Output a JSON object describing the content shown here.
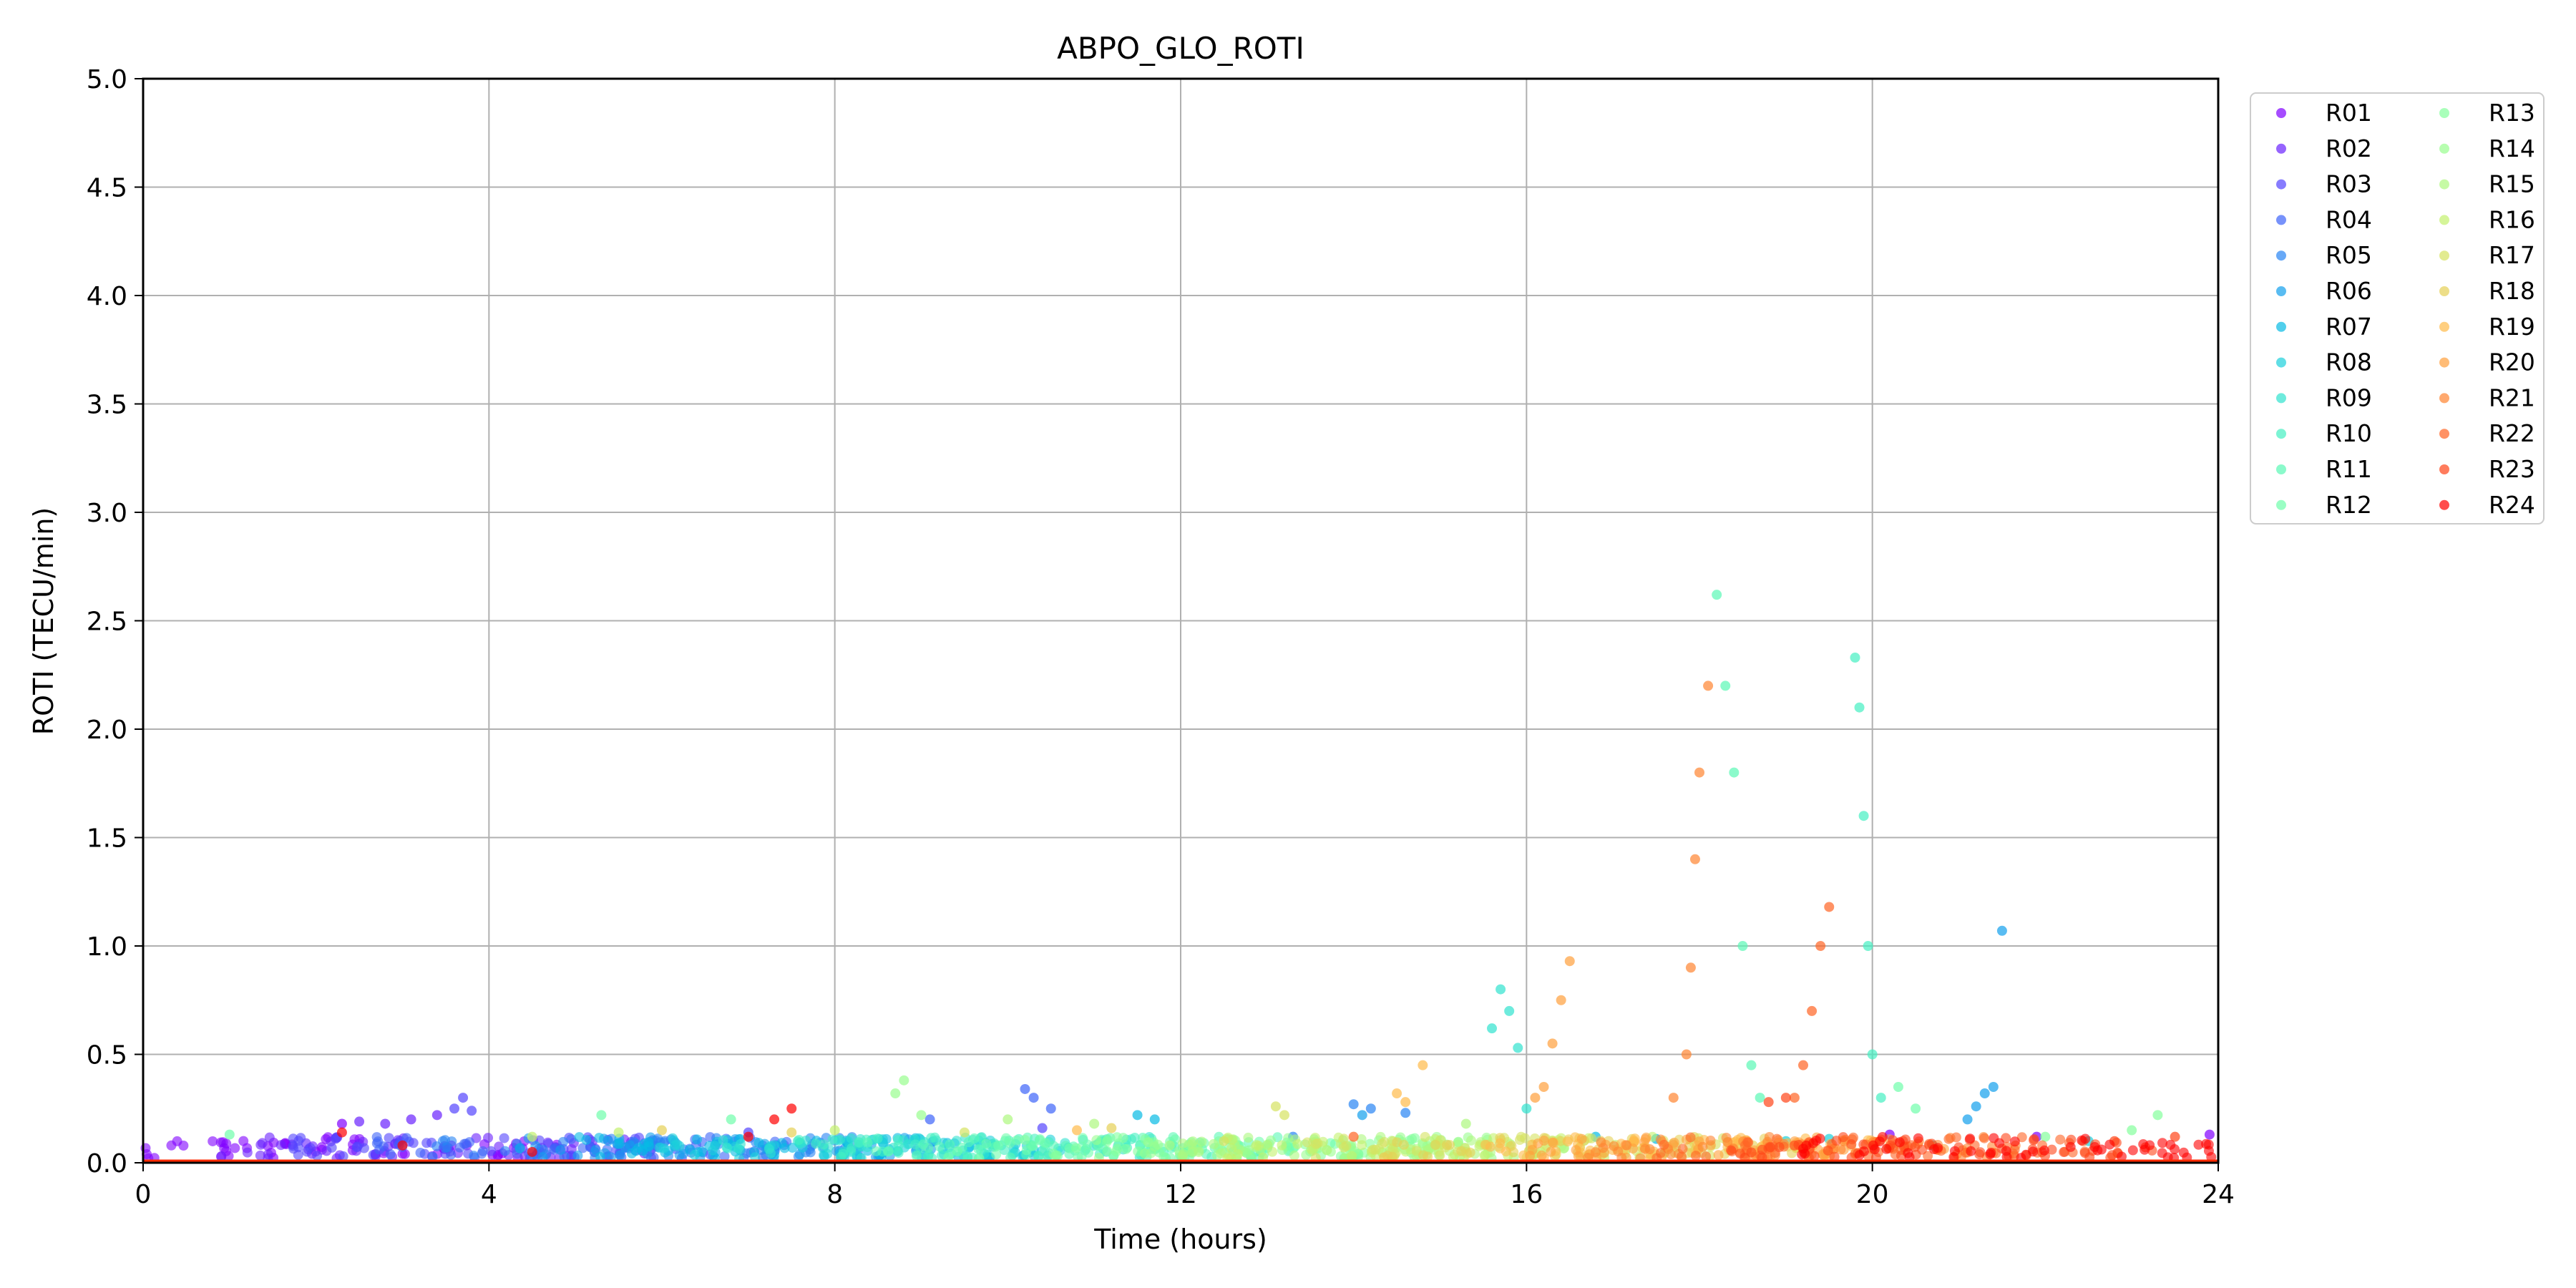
{
  "chart_data": {
    "type": "scatter",
    "title": "ABPO_GLO_ROTI",
    "xlabel": "Time (hours)",
    "ylabel": "ROTI (TECU/min)",
    "xlim": [
      0,
      24
    ],
    "ylim": [
      0,
      5
    ],
    "xticks": [
      "0",
      "4",
      "8",
      "12",
      "16",
      "20",
      "24"
    ],
    "yticks": [
      "0.0",
      "0.5",
      "1.0",
      "1.5",
      "2.0",
      "2.5",
      "3.0",
      "3.5",
      "4.0",
      "4.5",
      "5.0"
    ],
    "grid": true,
    "legend": {
      "placement": "outside right",
      "columns": 2
    },
    "series": [
      {
        "name": "R01",
        "color": "#8000ff",
        "points": [
          [
            20.2,
            0.13
          ],
          [
            21.9,
            0.12
          ],
          [
            23.9,
            0.13
          ],
          [
            2.3,
            0.18
          ]
        ]
      },
      {
        "name": "R02",
        "color": "#6a22fe",
        "points": [
          [
            2.5,
            0.19
          ],
          [
            2.8,
            0.18
          ],
          [
            3.1,
            0.2
          ],
          [
            3.4,
            0.22
          ]
        ]
      },
      {
        "name": "R03",
        "color": "#5444fd",
        "points": [
          [
            3.6,
            0.25
          ],
          [
            3.7,
            0.3
          ],
          [
            3.8,
            0.24
          ],
          [
            7.0,
            0.14
          ],
          [
            10.4,
            0.16
          ]
        ]
      },
      {
        "name": "R04",
        "color": "#3d64f9",
        "points": [
          [
            10.3,
            0.3
          ],
          [
            10.2,
            0.34
          ],
          [
            10.5,
            0.25
          ],
          [
            9.1,
            0.2
          ]
        ]
      },
      {
        "name": "R05",
        "color": "#2884f3",
        "points": [
          [
            14.0,
            0.27
          ],
          [
            14.2,
            0.25
          ],
          [
            14.6,
            0.23
          ],
          [
            13.3,
            0.12
          ]
        ]
      },
      {
        "name": "R06",
        "color": "#12a0ec",
        "points": [
          [
            21.5,
            1.07
          ],
          [
            21.4,
            0.35
          ],
          [
            21.3,
            0.32
          ],
          [
            21.2,
            0.26
          ],
          [
            21.1,
            0.2
          ],
          [
            14.1,
            0.22
          ]
        ]
      },
      {
        "name": "R07",
        "color": "#07bae4",
        "points": [
          [
            11.5,
            0.22
          ],
          [
            11.7,
            0.2
          ],
          [
            16.8,
            0.12
          ],
          [
            17.5,
            0.11
          ]
        ]
      },
      {
        "name": "R08",
        "color": "#1cd0db",
        "points": [
          [
            19.0,
            0.1
          ],
          [
            19.5,
            0.11
          ],
          [
            20.7,
            0.08
          ],
          [
            22.5,
            0.1
          ]
        ]
      },
      {
        "name": "R09",
        "color": "#31e2cf",
        "points": [
          [
            15.7,
            0.8
          ],
          [
            15.6,
            0.62
          ],
          [
            15.8,
            0.7
          ],
          [
            15.9,
            0.53
          ],
          [
            16.0,
            0.25
          ]
        ]
      },
      {
        "name": "R10",
        "color": "#45f0c2",
        "points": [
          [
            19.8,
            2.33
          ],
          [
            19.85,
            2.1
          ],
          [
            19.9,
            1.6
          ],
          [
            19.95,
            1.0
          ],
          [
            20.0,
            0.5
          ],
          [
            20.1,
            0.3
          ]
        ]
      },
      {
        "name": "R11",
        "color": "#5af8b5",
        "points": [
          [
            18.2,
            2.62
          ],
          [
            18.3,
            2.2
          ],
          [
            18.4,
            1.8
          ],
          [
            18.5,
            1.0
          ],
          [
            18.6,
            0.45
          ],
          [
            18.7,
            0.3
          ]
        ]
      },
      {
        "name": "R12",
        "color": "#6ffdab",
        "points": [
          [
            1.0,
            0.13
          ],
          [
            5.3,
            0.22
          ],
          [
            6.8,
            0.2
          ],
          [
            20.3,
            0.35
          ],
          [
            20.5,
            0.25
          ]
        ]
      },
      {
        "name": "R13",
        "color": "#84ff9d",
        "points": [
          [
            23.0,
            0.15
          ],
          [
            23.3,
            0.22
          ],
          [
            22.0,
            0.12
          ]
        ]
      },
      {
        "name": "R14",
        "color": "#99fd8f",
        "points": [
          [
            8.8,
            0.38
          ],
          [
            8.7,
            0.32
          ],
          [
            9.0,
            0.22
          ]
        ]
      },
      {
        "name": "R15",
        "color": "#aef87f",
        "points": [
          [
            10.0,
            0.2
          ],
          [
            11.0,
            0.18
          ],
          [
            15.3,
            0.18
          ]
        ]
      },
      {
        "name": "R16",
        "color": "#c3f16d",
        "points": [
          [
            4.5,
            0.12
          ],
          [
            5.5,
            0.14
          ],
          [
            8.0,
            0.15
          ]
        ]
      },
      {
        "name": "R17",
        "color": "#d5e261",
        "points": [
          [
            9.5,
            0.14
          ],
          [
            12.5,
            0.1
          ],
          [
            13.1,
            0.26
          ],
          [
            13.2,
            0.22
          ]
        ]
      },
      {
        "name": "R18",
        "color": "#e6d055",
        "points": [
          [
            6.0,
            0.15
          ],
          [
            7.5,
            0.14
          ],
          [
            11.2,
            0.16
          ]
        ]
      },
      {
        "name": "R19",
        "color": "#ffba4a",
        "points": [
          [
            14.8,
            0.45
          ],
          [
            14.5,
            0.32
          ],
          [
            14.6,
            0.28
          ],
          [
            10.8,
            0.15
          ]
        ]
      },
      {
        "name": "R20",
        "color": "#ffa03c",
        "points": [
          [
            16.5,
            0.93
          ],
          [
            16.4,
            0.75
          ],
          [
            16.3,
            0.55
          ],
          [
            16.2,
            0.35
          ],
          [
            16.1,
            0.3
          ]
        ]
      },
      {
        "name": "R21",
        "color": "#ff8430",
        "points": [
          [
            18.1,
            2.2
          ],
          [
            18.0,
            1.8
          ],
          [
            17.95,
            1.4
          ],
          [
            17.9,
            0.9
          ],
          [
            17.85,
            0.5
          ],
          [
            17.7,
            0.3
          ]
        ]
      },
      {
        "name": "R22",
        "color": "#ff6424",
        "points": [
          [
            19.5,
            1.18
          ],
          [
            19.4,
            1.0
          ],
          [
            19.3,
            0.7
          ],
          [
            19.2,
            0.45
          ],
          [
            19.1,
            0.3
          ],
          [
            14.0,
            0.12
          ]
        ]
      },
      {
        "name": "R23",
        "color": "#ff4418",
        "points": [
          [
            18.8,
            0.28
          ],
          [
            19.0,
            0.3
          ],
          [
            23.5,
            0.12
          ],
          [
            22.8,
            0.1
          ]
        ]
      },
      {
        "name": "R24",
        "color": "#ff0000",
        "points": [
          [
            7.5,
            0.25
          ],
          [
            7.3,
            0.2
          ],
          [
            7.0,
            0.12
          ],
          [
            2.3,
            0.14
          ],
          [
            3.0,
            0.08
          ],
          [
            4.5,
            0.05
          ]
        ]
      }
    ]
  }
}
